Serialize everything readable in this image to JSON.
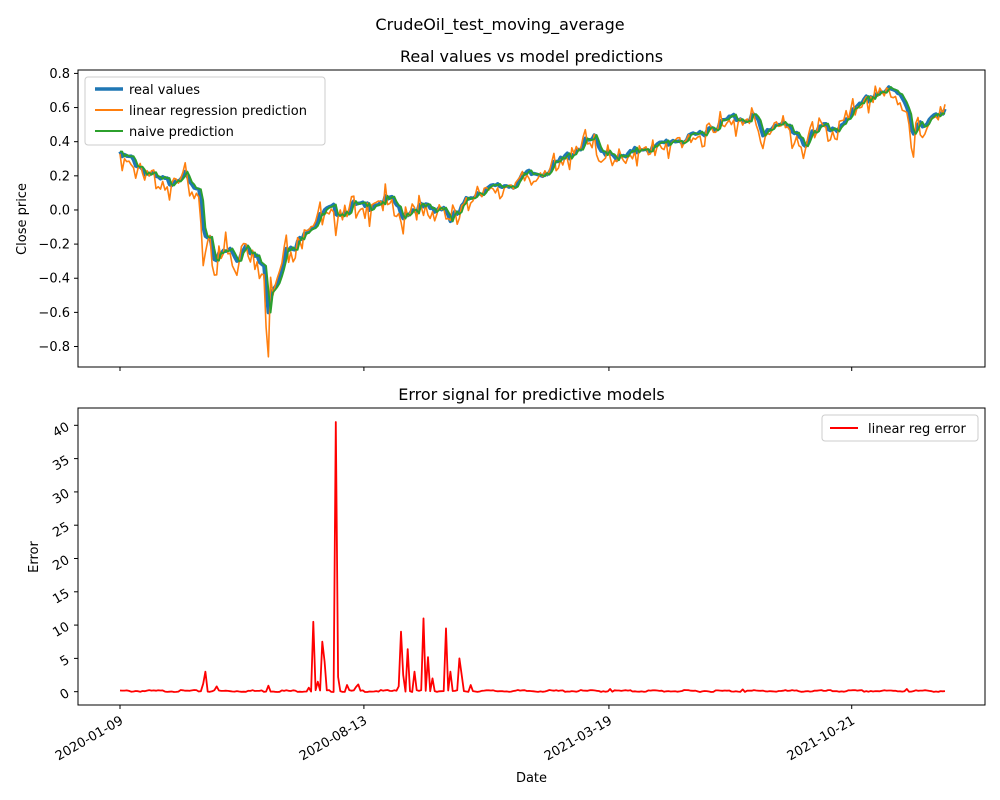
{
  "figure": {
    "suptitle": "CrudeOil_test_moving_average"
  },
  "chart_data": [
    {
      "type": "line",
      "title": "Real values vs model predictions",
      "xlabel": "",
      "ylabel": "Close price",
      "ylim": [
        -0.92,
        0.82
      ],
      "yticks": [
        -0.8,
        -0.6,
        -0.4,
        -0.2,
        0.0,
        0.2,
        0.4,
        0.6,
        0.8
      ],
      "ytick_labels": [
        "−0.8",
        "−0.6",
        "−0.4",
        "−0.2",
        "0.0",
        "0.2",
        "0.4",
        "0.6",
        "0.8"
      ],
      "x_start": "2020-01-09",
      "x_end": "2022-01-12",
      "xticks": [
        "2020-01-09",
        "2020-08-13",
        "2021-03-19",
        "2021-10-21"
      ],
      "grid": false,
      "legend_position": "top-left",
      "points": [
        [
          "2020-01-09",
          0.33
        ],
        [
          "2020-01-20",
          0.31
        ],
        [
          "2020-02-01",
          0.24
        ],
        [
          "2020-02-12",
          0.19
        ],
        [
          "2020-02-23",
          0.18
        ],
        [
          "2020-03-05",
          0.23
        ],
        [
          "2020-03-12",
          0.16
        ],
        [
          "2020-03-20",
          0.1
        ],
        [
          "2020-03-24",
          -0.13
        ],
        [
          "2020-03-29",
          -0.14
        ],
        [
          "2020-04-03",
          -0.28
        ],
        [
          "2020-04-09",
          -0.24
        ],
        [
          "2020-04-16",
          -0.22
        ],
        [
          "2020-04-23",
          -0.28
        ],
        [
          "2020-04-30",
          -0.17
        ],
        [
          "2020-05-07",
          -0.25
        ],
        [
          "2020-05-13",
          -0.3
        ],
        [
          "2020-05-17",
          -0.32
        ],
        [
          "2020-05-19",
          -0.62
        ],
        [
          "2020-05-22",
          -0.45
        ],
        [
          "2020-05-28",
          -0.4
        ],
        [
          "2020-06-04",
          -0.23
        ],
        [
          "2020-06-13",
          -0.22
        ],
        [
          "2020-06-21",
          -0.1
        ],
        [
          "2020-06-30",
          -0.07
        ],
        [
          "2020-07-09",
          0.0
        ],
        [
          "2020-07-17",
          0.02
        ],
        [
          "2020-07-25",
          0.0
        ],
        [
          "2020-08-04",
          0.04
        ],
        [
          "2020-08-14",
          0.03
        ],
        [
          "2020-08-24",
          0.06
        ],
        [
          "2020-09-03",
          0.07
        ],
        [
          "2020-09-10",
          0.06
        ],
        [
          "2020-09-15",
          -0.02
        ],
        [
          "2020-09-25",
          0.02
        ],
        [
          "2020-10-05",
          0.03
        ],
        [
          "2020-10-15",
          0.01
        ],
        [
          "2020-10-22",
          0.05
        ],
        [
          "2020-10-29",
          -0.04
        ],
        [
          "2020-11-06",
          0.0
        ],
        [
          "2020-11-16",
          0.1
        ],
        [
          "2020-11-26",
          0.13
        ],
        [
          "2020-12-06",
          0.14
        ],
        [
          "2020-12-16",
          0.16
        ],
        [
          "2020-12-26",
          0.17
        ],
        [
          "2021-01-05",
          0.22
        ],
        [
          "2021-01-15",
          0.23
        ],
        [
          "2021-01-25",
          0.25
        ],
        [
          "2021-02-04",
          0.3
        ],
        [
          "2021-02-14",
          0.35
        ],
        [
          "2021-02-24",
          0.4
        ],
        [
          "2021-03-06",
          0.43
        ],
        [
          "2021-03-11",
          0.35
        ],
        [
          "2021-03-19",
          0.37
        ],
        [
          "2021-03-29",
          0.31
        ],
        [
          "2021-04-08",
          0.34
        ],
        [
          "2021-04-18",
          0.39
        ],
        [
          "2021-04-28",
          0.37
        ],
        [
          "2021-05-08",
          0.41
        ],
        [
          "2021-05-18",
          0.43
        ],
        [
          "2021-05-28",
          0.42
        ],
        [
          "2021-06-07",
          0.46
        ],
        [
          "2021-06-17",
          0.5
        ],
        [
          "2021-06-27",
          0.52
        ],
        [
          "2021-07-07",
          0.56
        ],
        [
          "2021-07-17",
          0.55
        ],
        [
          "2021-07-27",
          0.57
        ],
        [
          "2021-08-03",
          0.44
        ],
        [
          "2021-08-10",
          0.5
        ],
        [
          "2021-08-20",
          0.54
        ],
        [
          "2021-08-30",
          0.46
        ],
        [
          "2021-09-09",
          0.4
        ],
        [
          "2021-09-16",
          0.48
        ],
        [
          "2021-09-26",
          0.5
        ],
        [
          "2021-10-06",
          0.46
        ],
        [
          "2021-10-16",
          0.56
        ],
        [
          "2021-10-26",
          0.6
        ],
        [
          "2021-11-05",
          0.67
        ],
        [
          "2021-11-15",
          0.71
        ],
        [
          "2021-11-25",
          0.71
        ],
        [
          "2021-12-05",
          0.68
        ],
        [
          "2021-12-10",
          0.62
        ],
        [
          "2021-12-14",
          0.47
        ],
        [
          "2021-12-19",
          0.52
        ],
        [
          "2021-12-24",
          0.49
        ],
        [
          "2021-12-29",
          0.52
        ],
        [
          "2022-01-03",
          0.58
        ],
        [
          "2022-01-12",
          0.61
        ]
      ],
      "series": [
        {
          "name": "real values",
          "color": "#1f77b4",
          "kind": "real"
        },
        {
          "name": "linear regression prediction",
          "color": "#ff7f0e",
          "kind": "linreg"
        },
        {
          "name": "naive prediction",
          "color": "#2ca02c",
          "kind": "naive"
        }
      ],
      "linreg_spikes": [
        [
          "2020-03-26",
          -0.25
        ],
        [
          "2020-04-05",
          -0.38
        ],
        [
          "2020-04-12",
          -0.13
        ],
        [
          "2020-05-20",
          -0.86
        ],
        [
          "2020-05-24",
          -0.5
        ],
        [
          "2020-09-16",
          -0.07
        ],
        [
          "2020-10-30",
          -0.06
        ],
        [
          "2021-03-12",
          0.28
        ],
        [
          "2021-03-22",
          0.26
        ],
        [
          "2021-08-04",
          0.36
        ],
        [
          "2021-09-10",
          0.36
        ],
        [
          "2021-12-15",
          0.31
        ],
        [
          "2021-12-22",
          0.44
        ]
      ]
    },
    {
      "type": "line",
      "title": "Error signal for predictive models",
      "xlabel": "Date",
      "ylabel": "Error",
      "ylim": [
        -2.0,
        42.6
      ],
      "yticks": [
        0,
        5,
        10,
        15,
        20,
        25,
        30,
        35,
        40
      ],
      "ytick_labels": [
        "0",
        "5",
        "10",
        "15",
        "20",
        "25",
        "30",
        "35",
        "40"
      ],
      "x_start": "2020-01-09",
      "x_end": "2022-01-12",
      "xticks": [
        "2020-01-09",
        "2020-08-13",
        "2021-03-19",
        "2021-10-21"
      ],
      "xtick_labels": [
        "2020-01-09",
        "2020-08-13",
        "2021-03-19",
        "2021-10-21"
      ],
      "grid": false,
      "legend_position": "top-right",
      "series": [
        {
          "name": "linear reg error",
          "color": "#ff0000",
          "baseline": 0.1,
          "spikes": [
            [
              "2020-03-24",
              1.2
            ],
            [
              "2020-03-26",
              3.0
            ],
            [
              "2020-04-05",
              0.8
            ],
            [
              "2020-05-21",
              0.9
            ],
            [
              "2020-06-25",
              0.6
            ],
            [
              "2020-06-30",
              10.5
            ],
            [
              "2020-07-04",
              1.5
            ],
            [
              "2020-07-07",
              7.5
            ],
            [
              "2020-07-09",
              4.5
            ],
            [
              "2020-07-19",
              40.5
            ],
            [
              "2020-07-22",
              2.2
            ],
            [
              "2020-07-30",
              1.0
            ],
            [
              "2020-08-06",
              0.7
            ],
            [
              "2020-08-09",
              1.1
            ],
            [
              "2020-09-13",
              0.8
            ],
            [
              "2020-09-16",
              9.0
            ],
            [
              "2020-09-18",
              2.5
            ],
            [
              "2020-09-22",
              6.4
            ],
            [
              "2020-09-28",
              3.0
            ],
            [
              "2020-10-06",
              11.0
            ],
            [
              "2020-10-09",
              5.2
            ],
            [
              "2020-10-13",
              2.0
            ],
            [
              "2020-10-26",
              9.5
            ],
            [
              "2020-10-29",
              3.0
            ],
            [
              "2020-11-06",
              5.0
            ],
            [
              "2020-11-09",
              2.5
            ],
            [
              "2020-11-17",
              1.0
            ],
            [
              "2021-03-20",
              0.4
            ],
            [
              "2021-07-17",
              0.35
            ],
            [
              "2021-12-10",
              0.4
            ]
          ]
        }
      ]
    }
  ]
}
